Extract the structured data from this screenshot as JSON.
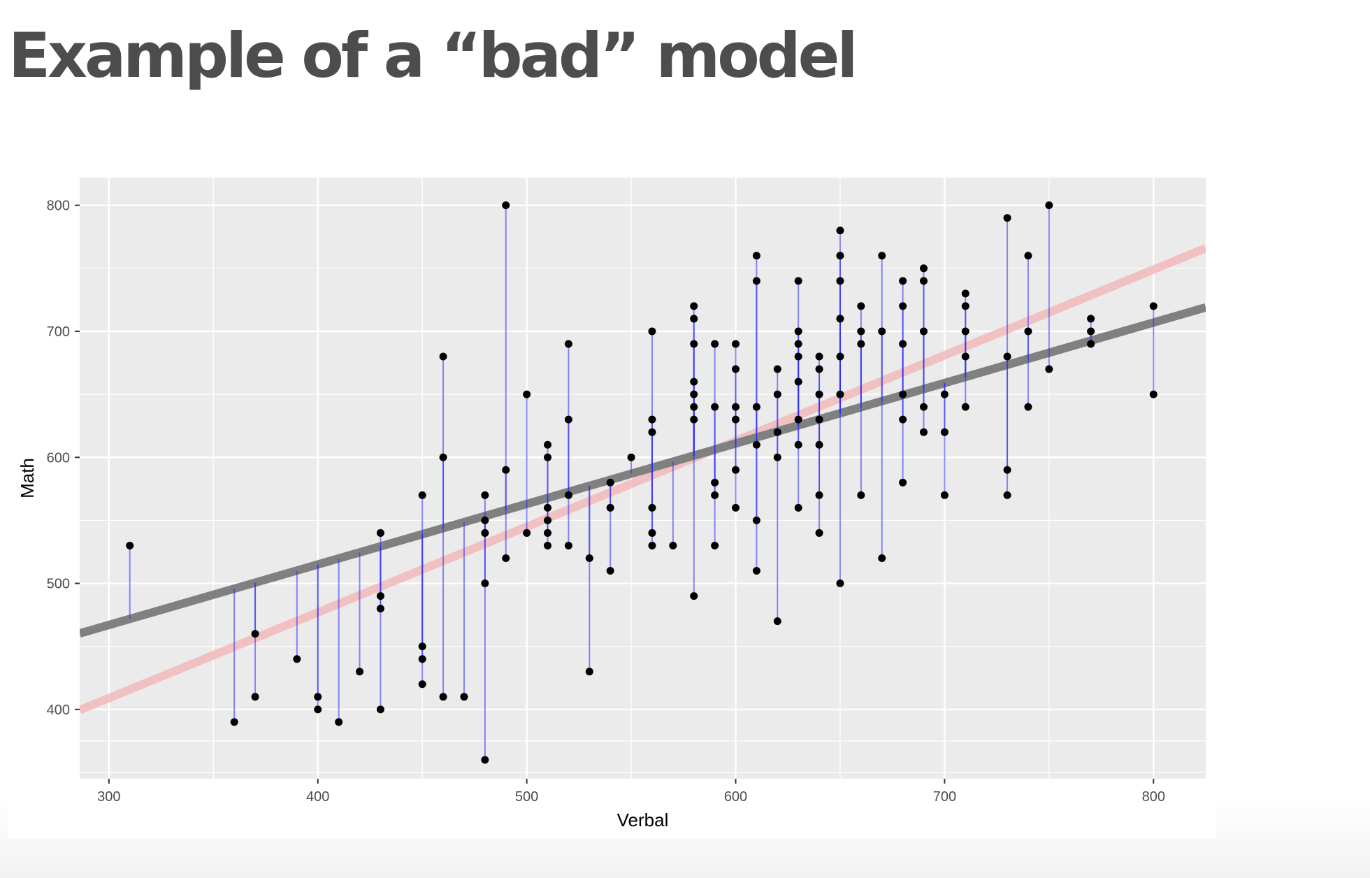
{
  "slide": {
    "title": "Example of a “bad” model"
  },
  "colors": {
    "panel": "#ebebeb",
    "grid_major": "#ffffff",
    "point": "#000000",
    "residual": "#2b2bff",
    "fit_line": "#808080",
    "reference_line": "#f2b8b8"
  },
  "chart_data": {
    "type": "scatter",
    "title": "",
    "xlabel": "Verbal",
    "ylabel": "Math",
    "xlim": [
      286,
      825
    ],
    "ylim": [
      345,
      822
    ],
    "xticks": [
      300,
      400,
      500,
      600,
      700,
      800
    ],
    "yticks": [
      400,
      500,
      600,
      700,
      800
    ],
    "grid": true,
    "legend": "none",
    "fitted_line": {
      "intercept": 323,
      "slope": 0.48
    },
    "reference_line": {
      "intercept": 205,
      "slope": 0.68
    },
    "points": [
      [
        310,
        530
      ],
      [
        360,
        390
      ],
      [
        370,
        460
      ],
      [
        370,
        410
      ],
      [
        390,
        440
      ],
      [
        400,
        410
      ],
      [
        400,
        400
      ],
      [
        410,
        390
      ],
      [
        420,
        430
      ],
      [
        430,
        540
      ],
      [
        430,
        490
      ],
      [
        430,
        480
      ],
      [
        430,
        400
      ],
      [
        450,
        570
      ],
      [
        450,
        450
      ],
      [
        450,
        440
      ],
      [
        450,
        420
      ],
      [
        460,
        680
      ],
      [
        460,
        600
      ],
      [
        460,
        410
      ],
      [
        470,
        410
      ],
      [
        480,
        570
      ],
      [
        480,
        550
      ],
      [
        480,
        540
      ],
      [
        480,
        500
      ],
      [
        480,
        360
      ],
      [
        490,
        800
      ],
      [
        490,
        590
      ],
      [
        490,
        520
      ],
      [
        500,
        650
      ],
      [
        500,
        540
      ],
      [
        510,
        610
      ],
      [
        510,
        600
      ],
      [
        510,
        560
      ],
      [
        510,
        550
      ],
      [
        510,
        540
      ],
      [
        510,
        530
      ],
      [
        520,
        690
      ],
      [
        520,
        630
      ],
      [
        520,
        570
      ],
      [
        520,
        530
      ],
      [
        530,
        520
      ],
      [
        530,
        430
      ],
      [
        540,
        580
      ],
      [
        540,
        560
      ],
      [
        540,
        510
      ],
      [
        550,
        600
      ],
      [
        560,
        700
      ],
      [
        560,
        630
      ],
      [
        560,
        620
      ],
      [
        560,
        560
      ],
      [
        560,
        540
      ],
      [
        560,
        530
      ],
      [
        570,
        530
      ],
      [
        580,
        720
      ],
      [
        580,
        710
      ],
      [
        580,
        690
      ],
      [
        580,
        660
      ],
      [
        580,
        650
      ],
      [
        580,
        640
      ],
      [
        580,
        630
      ],
      [
        580,
        490
      ],
      [
        590,
        690
      ],
      [
        590,
        640
      ],
      [
        590,
        580
      ],
      [
        590,
        570
      ],
      [
        590,
        530
      ],
      [
        600,
        690
      ],
      [
        600,
        670
      ],
      [
        600,
        640
      ],
      [
        600,
        630
      ],
      [
        600,
        590
      ],
      [
        600,
        560
      ],
      [
        610,
        760
      ],
      [
        610,
        740
      ],
      [
        610,
        640
      ],
      [
        610,
        610
      ],
      [
        610,
        550
      ],
      [
        610,
        510
      ],
      [
        620,
        670
      ],
      [
        620,
        650
      ],
      [
        620,
        620
      ],
      [
        620,
        600
      ],
      [
        620,
        470
      ],
      [
        630,
        740
      ],
      [
        630,
        700
      ],
      [
        630,
        690
      ],
      [
        630,
        680
      ],
      [
        630,
        660
      ],
      [
        630,
        630
      ],
      [
        630,
        610
      ],
      [
        630,
        560
      ],
      [
        640,
        680
      ],
      [
        640,
        670
      ],
      [
        640,
        650
      ],
      [
        640,
        630
      ],
      [
        640,
        610
      ],
      [
        640,
        570
      ],
      [
        640,
        540
      ],
      [
        650,
        780
      ],
      [
        650,
        760
      ],
      [
        650,
        740
      ],
      [
        650,
        710
      ],
      [
        650,
        680
      ],
      [
        650,
        650
      ],
      [
        650,
        500
      ],
      [
        660,
        720
      ],
      [
        660,
        700
      ],
      [
        660,
        690
      ],
      [
        660,
        570
      ],
      [
        670,
        760
      ],
      [
        670,
        700
      ],
      [
        670,
        520
      ],
      [
        680,
        740
      ],
      [
        680,
        720
      ],
      [
        680,
        690
      ],
      [
        680,
        650
      ],
      [
        680,
        630
      ],
      [
        680,
        580
      ],
      [
        690,
        750
      ],
      [
        690,
        740
      ],
      [
        690,
        700
      ],
      [
        690,
        640
      ],
      [
        690,
        620
      ],
      [
        700,
        650
      ],
      [
        700,
        620
      ],
      [
        700,
        570
      ],
      [
        710,
        730
      ],
      [
        710,
        720
      ],
      [
        710,
        700
      ],
      [
        710,
        680
      ],
      [
        710,
        640
      ],
      [
        730,
        790
      ],
      [
        730,
        680
      ],
      [
        730,
        590
      ],
      [
        730,
        570
      ],
      [
        740,
        760
      ],
      [
        740,
        700
      ],
      [
        740,
        640
      ],
      [
        750,
        800
      ],
      [
        750,
        670
      ],
      [
        770,
        710
      ],
      [
        770,
        700
      ],
      [
        770,
        690
      ],
      [
        800,
        720
      ],
      [
        800,
        650
      ]
    ]
  }
}
